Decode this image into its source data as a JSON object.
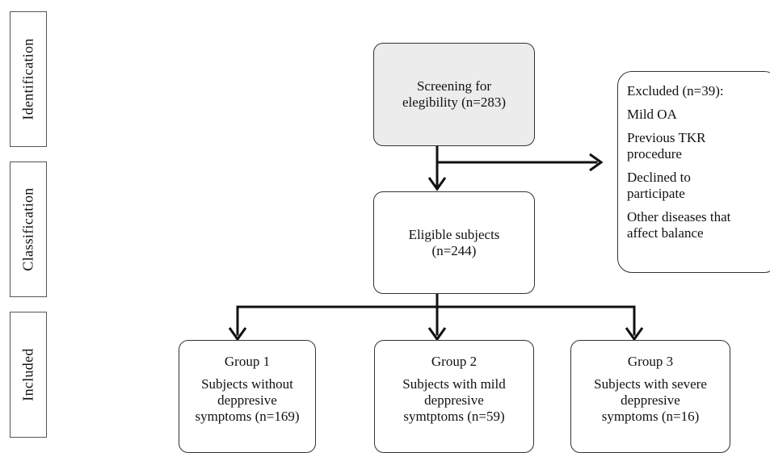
{
  "stages": [
    {
      "label": "Identification"
    },
    {
      "label": "Classification"
    },
    {
      "label": "Included"
    }
  ],
  "screening": {
    "line1": "Screening for",
    "line2": "elegibility (n=283)"
  },
  "eligible": {
    "line1": "Eligible subjects",
    "line2": "(n=244)"
  },
  "excluded": {
    "title": "Excluded (n=39):",
    "items": [
      {
        "text": "Mild OA"
      },
      {
        "line1": "Previous TKR",
        "line2": "procedure"
      },
      {
        "line1": "Declined to",
        "line2": "participate"
      },
      {
        "line1": "Other diseases that",
        "line2": "affect balance"
      }
    ]
  },
  "groups": [
    {
      "title": "Group 1",
      "line1": "Subjects without",
      "line2": "deppresive",
      "line3": "symptoms (n=169)"
    },
    {
      "title": "Group 2",
      "line1": "Subjects with mild",
      "line2": "deppresive",
      "line3": "symtptoms (n=59)"
    },
    {
      "title": "Group 3",
      "line1": "Subjects with severe",
      "line2": "deppresive",
      "line3": "symptoms (n=16)"
    }
  ]
}
